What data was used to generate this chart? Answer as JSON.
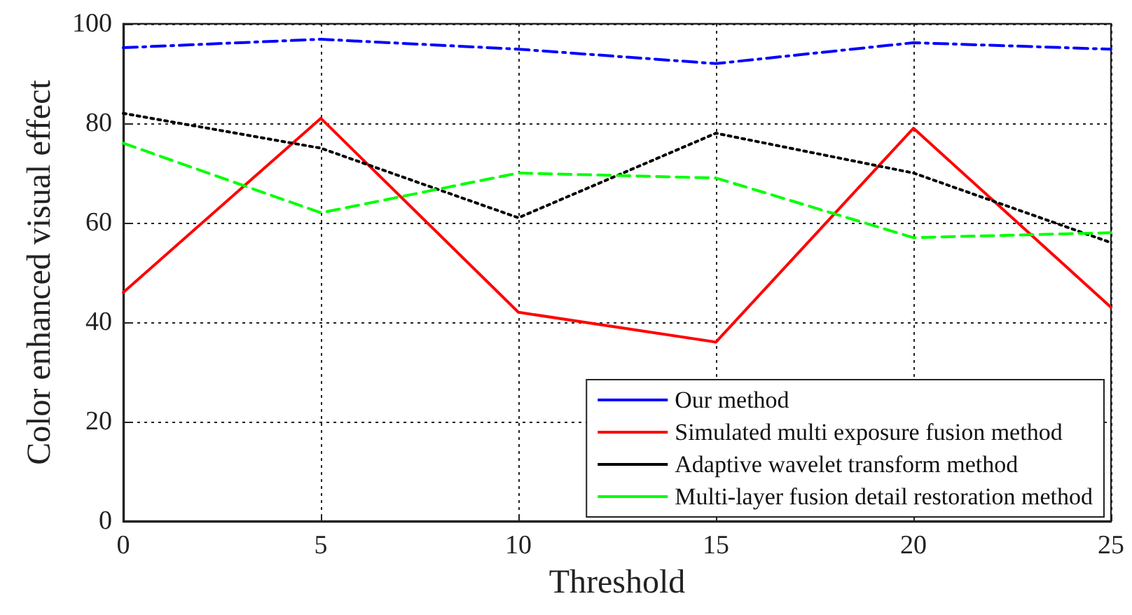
{
  "chart_data": {
    "type": "line",
    "xlabel": "Threshold",
    "ylabel": "Color enhanced visual effect",
    "x": [
      0,
      5,
      10,
      15,
      20,
      25
    ],
    "xlim": [
      0,
      25
    ],
    "xticks": [
      0,
      5,
      10,
      15,
      20,
      25
    ],
    "ylim": [
      0,
      100
    ],
    "yticks": [
      0,
      20,
      40,
      60,
      80,
      100
    ],
    "grid": true,
    "legend": "bottom right",
    "marker": "none",
    "series": [
      {
        "name": "Our method",
        "color": "#0000ff",
        "line_style": "dashdot",
        "values": [
          95.2,
          96.9,
          94.9,
          92,
          96.2,
          94.9
        ]
      },
      {
        "name": "Simulated multi exposure fusion method",
        "color": "#ff0000",
        "line_style": "solid",
        "values": [
          46,
          81,
          42,
          36,
          79,
          43
        ]
      },
      {
        "name": "Adaptive wavelet transform method",
        "color": "#000000",
        "line_style": "dotted",
        "values": [
          82,
          75,
          61,
          78,
          70,
          56
        ]
      },
      {
        "name": "Multi-layer fusion detail restoration method",
        "color": "#00ff00",
        "line_style": "dashed",
        "values": [
          76,
          62,
          70,
          69,
          57,
          58
        ]
      }
    ]
  }
}
